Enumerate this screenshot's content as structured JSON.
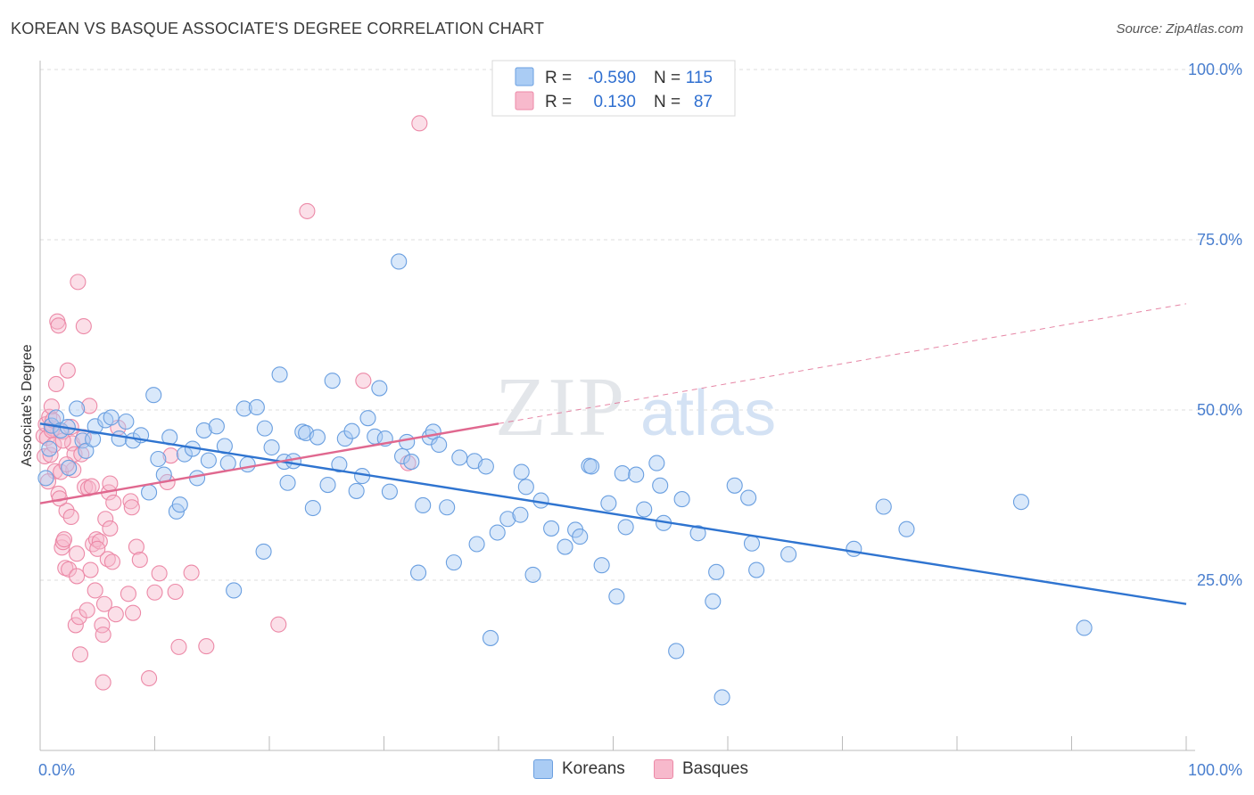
{
  "header": {
    "title": "KOREAN VS BASQUE ASSOCIATE'S DEGREE CORRELATION CHART",
    "source": "Source: ZipAtlas.com"
  },
  "watermark": {
    "zip": "ZIP",
    "atlas": "atlas"
  },
  "legend_top": {
    "rows": [
      {
        "r_label": "R =",
        "r_value": "-0.590",
        "n_label": "N =",
        "n_value": "115"
      },
      {
        "r_label": "R =",
        "r_value": "0.130",
        "n_label": "N =",
        "n_value": "87"
      }
    ]
  },
  "legend_bottom": {
    "items": [
      {
        "label": "Koreans"
      },
      {
        "label": "Basques"
      }
    ]
  },
  "colors": {
    "korean_fill": "#aaccf4",
    "korean_stroke": "#6a9fe0",
    "korean_line": "#2f74d0",
    "basque_fill": "#f7b9cc",
    "basque_stroke": "#ec89a7",
    "basque_line": "#e0688f",
    "tick_text": "#4a7fcf",
    "grid": "#dddddd"
  },
  "chart_data": {
    "type": "scatter",
    "title": "KOREAN VS BASQUE ASSOCIATE'S DEGREE CORRELATION CHART",
    "xlabel": "",
    "ylabel": "Associate's Degree",
    "xlim": [
      0,
      100
    ],
    "ylim": [
      0,
      102
    ],
    "x_tick_labels": [
      "0.0%",
      "100.0%"
    ],
    "y_ticks": [
      25,
      50,
      75,
      100
    ],
    "y_tick_labels": [
      "25.0%",
      "50.0%",
      "75.0%",
      "100.0%"
    ],
    "grid": true,
    "legend_placement": "top-center and bottom",
    "series": [
      {
        "name": "Koreans",
        "r": -0.59,
        "n": 115,
        "trend": {
          "x0": 0,
          "y0": 48.0,
          "x1": 100,
          "y1": 21.5
        },
        "points": [
          [
            0.5,
            40.0
          ],
          [
            0.8,
            44.3
          ],
          [
            1.0,
            47.7
          ],
          [
            1.4,
            48.9
          ],
          [
            1.8,
            47.0
          ],
          [
            2.4,
            47.5
          ],
          [
            2.5,
            41.5
          ],
          [
            3.2,
            50.2
          ],
          [
            3.7,
            45.5
          ],
          [
            4.0,
            44.0
          ],
          [
            4.6,
            45.7
          ],
          [
            4.8,
            47.6
          ],
          [
            5.7,
            48.5
          ],
          [
            6.2,
            48.9
          ],
          [
            6.9,
            45.8
          ],
          [
            7.5,
            48.3
          ],
          [
            8.1,
            45.5
          ],
          [
            8.8,
            46.3
          ],
          [
            9.5,
            37.9
          ],
          [
            9.9,
            52.2
          ],
          [
            10.3,
            42.8
          ],
          [
            10.8,
            40.5
          ],
          [
            11.3,
            46.0
          ],
          [
            11.9,
            35.1
          ],
          [
            12.2,
            36.1
          ],
          [
            12.6,
            43.5
          ],
          [
            13.3,
            44.3
          ],
          [
            13.7,
            40.0
          ],
          [
            14.3,
            47.0
          ],
          [
            14.7,
            42.6
          ],
          [
            15.4,
            47.6
          ],
          [
            16.1,
            44.7
          ],
          [
            16.4,
            42.2
          ],
          [
            16.9,
            23.5
          ],
          [
            17.8,
            50.2
          ],
          [
            18.1,
            42.0
          ],
          [
            18.9,
            50.4
          ],
          [
            19.5,
            29.2
          ],
          [
            19.6,
            47.3
          ],
          [
            20.2,
            44.5
          ],
          [
            20.9,
            55.2
          ],
          [
            21.3,
            42.4
          ],
          [
            21.6,
            39.3
          ],
          [
            22.1,
            42.5
          ],
          [
            22.9,
            46.8
          ],
          [
            23.2,
            46.6
          ],
          [
            23.8,
            35.6
          ],
          [
            24.2,
            46.0
          ],
          [
            25.1,
            39.0
          ],
          [
            25.5,
            54.3
          ],
          [
            26.1,
            42.0
          ],
          [
            26.6,
            45.8
          ],
          [
            27.2,
            46.9
          ],
          [
            27.6,
            38.1
          ],
          [
            28.1,
            40.3
          ],
          [
            28.6,
            48.8
          ],
          [
            29.2,
            46.1
          ],
          [
            29.6,
            53.2
          ],
          [
            30.1,
            45.8
          ],
          [
            30.5,
            38.0
          ],
          [
            31.3,
            71.8
          ],
          [
            31.6,
            43.2
          ],
          [
            32.0,
            45.3
          ],
          [
            32.4,
            42.4
          ],
          [
            33.0,
            26.1
          ],
          [
            33.4,
            36.0
          ],
          [
            34.0,
            46.0
          ],
          [
            34.3,
            46.8
          ],
          [
            34.8,
            44.9
          ],
          [
            35.5,
            35.7
          ],
          [
            36.1,
            27.6
          ],
          [
            36.6,
            43.0
          ],
          [
            37.9,
            42.5
          ],
          [
            38.1,
            30.3
          ],
          [
            38.9,
            41.7
          ],
          [
            39.3,
            16.5
          ],
          [
            39.9,
            32.0
          ],
          [
            40.8,
            34.0
          ],
          [
            42.0,
            40.9
          ],
          [
            42.4,
            38.7
          ],
          [
            43.0,
            25.8
          ],
          [
            44.6,
            32.6
          ],
          [
            45.8,
            29.9
          ],
          [
            46.7,
            32.4
          ],
          [
            47.1,
            31.4
          ],
          [
            47.9,
            41.8
          ],
          [
            48.1,
            41.7
          ],
          [
            49.0,
            27.2
          ],
          [
            49.6,
            36.3
          ],
          [
            50.3,
            22.6
          ],
          [
            50.8,
            40.7
          ],
          [
            51.1,
            32.8
          ],
          [
            52.0,
            40.5
          ],
          [
            52.7,
            35.4
          ],
          [
            53.8,
            42.2
          ],
          [
            54.1,
            38.9
          ],
          [
            54.4,
            33.4
          ],
          [
            55.5,
            14.6
          ],
          [
            56.0,
            36.9
          ],
          [
            57.4,
            31.9
          ],
          [
            58.7,
            21.9
          ],
          [
            59.0,
            26.2
          ],
          [
            59.5,
            7.8
          ],
          [
            60.6,
            38.9
          ],
          [
            61.8,
            37.1
          ],
          [
            62.1,
            30.4
          ],
          [
            62.5,
            26.5
          ],
          [
            65.3,
            28.8
          ],
          [
            71.0,
            29.6
          ],
          [
            73.6,
            35.8
          ],
          [
            75.6,
            32.5
          ],
          [
            85.6,
            36.5
          ],
          [
            91.1,
            18.0
          ],
          [
            43.7,
            36.7
          ],
          [
            41.9,
            34.6
          ]
        ]
      },
      {
        "name": "Basques",
        "r": 0.13,
        "n": 87,
        "trend_solid": {
          "x0": 0,
          "y0": 36.3,
          "x1": 40.0,
          "y1": 48.0
        },
        "trend_dashed": {
          "x0": 40.0,
          "y0": 48.0,
          "x1": 100,
          "y1": 65.6
        },
        "points": [
          [
            0.3,
            46.2
          ],
          [
            0.4,
            43.2
          ],
          [
            0.5,
            47.9
          ],
          [
            0.6,
            45.9
          ],
          [
            0.8,
            49.0
          ],
          [
            0.9,
            43.4
          ],
          [
            1.0,
            50.5
          ],
          [
            1.1,
            47.3
          ],
          [
            1.3,
            41.0
          ],
          [
            1.4,
            53.8
          ],
          [
            1.5,
            63.0
          ],
          [
            1.6,
            62.4
          ],
          [
            1.6,
            37.7
          ],
          [
            1.8,
            40.9
          ],
          [
            1.9,
            29.8
          ],
          [
            2.0,
            30.6
          ],
          [
            2.1,
            31.0
          ],
          [
            2.2,
            26.8
          ],
          [
            2.3,
            35.2
          ],
          [
            2.4,
            55.8
          ],
          [
            2.5,
            26.6
          ],
          [
            2.7,
            34.3
          ],
          [
            2.8,
            45.1
          ],
          [
            2.9,
            41.2
          ],
          [
            3.0,
            43.5
          ],
          [
            3.1,
            18.4
          ],
          [
            3.2,
            25.6
          ],
          [
            3.2,
            28.9
          ],
          [
            3.3,
            68.8
          ],
          [
            3.4,
            19.6
          ],
          [
            3.5,
            14.1
          ],
          [
            3.8,
            62.3
          ],
          [
            3.9,
            38.7
          ],
          [
            4.1,
            20.6
          ],
          [
            4.2,
            38.5
          ],
          [
            4.3,
            50.6
          ],
          [
            4.4,
            26.5
          ],
          [
            4.6,
            30.3
          ],
          [
            4.8,
            23.5
          ],
          [
            4.9,
            31.0
          ],
          [
            5.2,
            30.7
          ],
          [
            5.4,
            18.4
          ],
          [
            5.5,
            17.0
          ],
          [
            5.5,
            10.0
          ],
          [
            5.6,
            21.5
          ],
          [
            5.7,
            34.0
          ],
          [
            5.9,
            28.1
          ],
          [
            6.0,
            37.9
          ],
          [
            6.1,
            32.6
          ],
          [
            6.1,
            39.2
          ],
          [
            6.3,
            27.7
          ],
          [
            6.6,
            20.0
          ],
          [
            6.8,
            47.4
          ],
          [
            7.7,
            23.0
          ],
          [
            7.9,
            36.6
          ],
          [
            8.0,
            35.7
          ],
          [
            8.1,
            20.2
          ],
          [
            8.4,
            29.9
          ],
          [
            8.7,
            28.0
          ],
          [
            9.5,
            10.6
          ],
          [
            10.0,
            23.2
          ],
          [
            10.4,
            26.0
          ],
          [
            11.1,
            39.4
          ],
          [
            11.4,
            43.3
          ],
          [
            11.8,
            23.3
          ],
          [
            12.1,
            15.2
          ],
          [
            13.2,
            26.1
          ],
          [
            14.5,
            15.3
          ],
          [
            20.8,
            18.5
          ],
          [
            23.3,
            79.2
          ],
          [
            28.2,
            54.3
          ],
          [
            33.1,
            92.1
          ],
          [
            32.1,
            42.2
          ],
          [
            1.0,
            47.0
          ],
          [
            1.2,
            44.9
          ],
          [
            1.9,
            46.8
          ],
          [
            2.3,
            42.0
          ],
          [
            2.7,
            47.5
          ],
          [
            3.6,
            43.5
          ],
          [
            1.7,
            37.0
          ],
          [
            4.5,
            38.8
          ],
          [
            0.7,
            39.5
          ],
          [
            3.8,
            46.0
          ],
          [
            1.1,
            48.5
          ],
          [
            2.0,
            45.5
          ],
          [
            5.0,
            29.6
          ],
          [
            6.4,
            36.4
          ]
        ]
      }
    ]
  }
}
